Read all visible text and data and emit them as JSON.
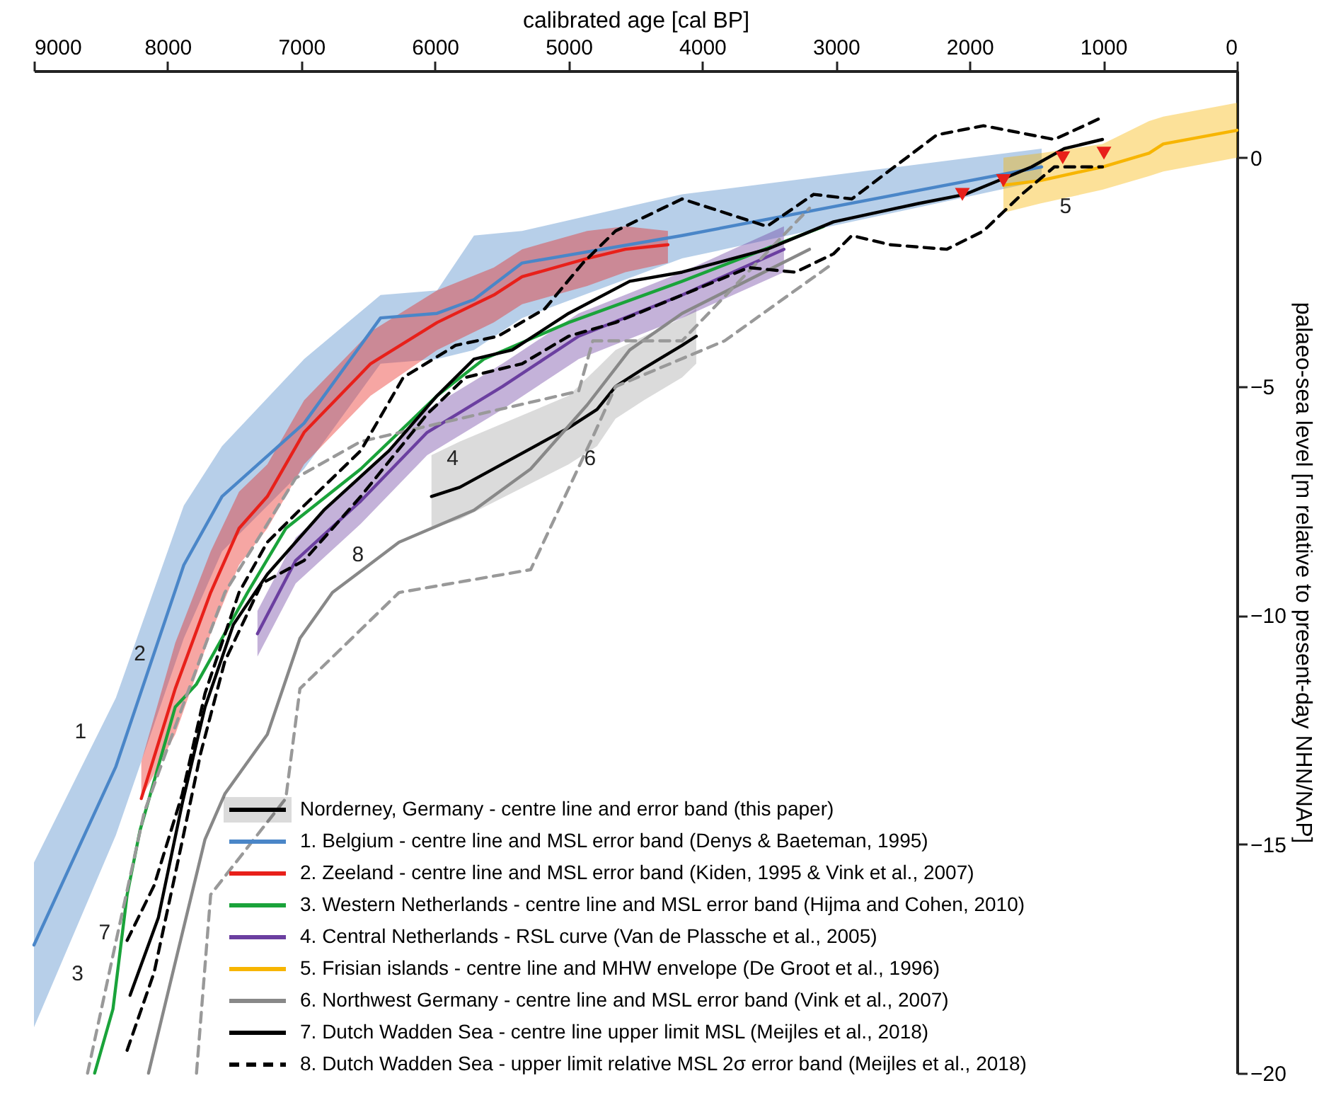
{
  "chart_data": {
    "type": "line",
    "xlabel": "calibrated age [cal BP]",
    "ylabel": "palaeo-sea level [m relative to present-day NHN/NAP]",
    "xlim": [
      9000,
      0
    ],
    "xticks": [
      9000,
      8000,
      7000,
      6000,
      5000,
      4000,
      3000,
      2000,
      1000,
      0
    ],
    "ylim": [
      -20,
      1.9
    ],
    "yticks": [
      -20,
      -15,
      -10,
      -5,
      0
    ],
    "grid": false,
    "legend": "bottom left",
    "series": [
      {
        "name": "Norderney, Germany - centre line and error band (this paper)",
        "color": "#000000",
        "x": [
          6026,
          5814,
          5000,
          4787,
          4649,
          4437,
          4151,
          4045
        ],
        "values": [
          -7.4,
          -7.2,
          -5.9,
          -5.5,
          -5.0,
          -4.6,
          -4.1,
          -3.9
        ],
        "lower": [
          -8.1,
          -7.9,
          -6.7,
          -6.3,
          -5.7,
          -5.3,
          -4.8,
          -4.5
        ],
        "upper": [
          -6.5,
          -6.2,
          -5.2,
          -4.6,
          -4.2,
          -3.9,
          -3.5,
          -3.3
        ]
      },
      {
        "name": "1. Belgium - centre line and MSL error band (Denys & Baeteman, 1995)",
        "color": "#4a86c8",
        "x": [
          9000,
          8387,
          7879,
          7593,
          6979,
          6407,
          5984,
          5708,
          5348,
          4151,
          1461
        ],
        "values": [
          -17.2,
          -13.3,
          -8.9,
          -7.4,
          -5.8,
          -3.5,
          -3.4,
          -3.1,
          -2.3,
          -1.7,
          -0.2
        ],
        "lower": [
          -19.0,
          -14.8,
          -10.5,
          -8.6,
          -6.8,
          -4.5,
          -4.4,
          -4.2,
          -3.5,
          -2.2,
          -0.5
        ],
        "upper": [
          -15.4,
          -11.8,
          -7.6,
          -6.3,
          -4.4,
          -3.0,
          -2.9,
          -1.7,
          -1.6,
          -0.8,
          0.2
        ]
      },
      {
        "name": "2. Zeeland - centre line and MSL error band (Kiden, 1995 & Vink et al., 2007)",
        "color": "#e8201a",
        "x": [
          8197,
          7943,
          7678,
          7466,
          7254,
          6979,
          6481,
          5984,
          5560,
          5348,
          4861,
          4575,
          4257
        ],
        "values": [
          -14.0,
          -11.6,
          -9.5,
          -8.1,
          -7.4,
          -6.0,
          -4.5,
          -3.6,
          -3.0,
          -2.6,
          -2.2,
          -2.0,
          -1.9
        ],
        "lower": [
          -14.0,
          -12.6,
          -10.4,
          -8.9,
          -8.1,
          -6.7,
          -5.2,
          -4.2,
          -3.6,
          -3.2,
          -2.8,
          -2.5,
          -2.3
        ],
        "upper": [
          -13.2,
          -10.6,
          -8.6,
          -7.3,
          -6.7,
          -5.3,
          -3.8,
          -2.9,
          -2.4,
          -2.0,
          -1.6,
          -1.5,
          -1.6
        ]
      },
      {
        "name": "3. Western Netherlands - centre line and MSL error band (Hijma and Cohen, 2010)",
        "color": "#1aa33a",
        "x": [
          8546,
          8409,
          8303,
          8207,
          7943,
          7784,
          7593,
          7402,
          7116,
          6555,
          5984,
          5634,
          5000,
          4151,
          3092
        ],
        "values": [
          -20.0,
          -18.6,
          -16.1,
          -14.7,
          -12.0,
          -11.5,
          -10.5,
          -9.5,
          -8.1,
          -6.8,
          -5.2,
          -4.4,
          -3.6,
          -2.7,
          -1.5
        ]
      },
      {
        "name": "4. Central Netherlands - RSL curve (Van de Plassche et al., 2005)",
        "color": "#6b3fa0",
        "x": [
          7328,
          7042,
          6555,
          6058,
          5496,
          4925,
          4151,
          3389
        ],
        "values": [
          -10.4,
          -8.8,
          -7.5,
          -6.0,
          -5.0,
          -3.9,
          -3.0,
          -2.0
        ],
        "lower": [
          -10.9,
          -9.3,
          -8.0,
          -6.5,
          -5.5,
          -4.4,
          -3.5,
          -2.5
        ],
        "upper": [
          -9.9,
          -8.3,
          -7.0,
          -5.5,
          -4.5,
          -3.4,
          -2.5,
          -1.5
        ]
      },
      {
        "name": "5. Frisian islands - centre line and MHW envelope (De Groot et al., 1996)",
        "color": "#f7b500",
        "x": [
          1747,
          1472,
          1006,
          657,
          551,
          0
        ],
        "values": [
          -0.6,
          -0.5,
          -0.2,
          0.1,
          0.3,
          0.6
        ],
        "lower": [
          -1.2,
          -1.0,
          -0.7,
          -0.4,
          -0.3,
          0.0
        ],
        "upper": [
          0.0,
          0.1,
          0.3,
          0.8,
          0.9,
          1.2
        ]
      },
      {
        "name": "6. Northwest Germany - centre line and MSL error band (Vink et al., 2007)",
        "color": "#888888",
        "x": [
          8143,
          7721,
          7572,
          7254,
          7010,
          6767,
          6269,
          5708,
          5284,
          4861,
          4543,
          4151,
          3198
        ],
        "values": [
          -20.0,
          -14.9,
          -13.9,
          -12.6,
          -10.5,
          -9.5,
          -8.4,
          -7.7,
          -6.8,
          -5.4,
          -4.2,
          -3.4,
          -2.0
        ]
      },
      {
        "color": "#999999",
        "line_style": "dashed",
        "x": [
          8599,
          8355,
          8175,
          7890,
          7572,
          7042,
          6555,
          4925,
          4819,
          4151,
          3198
        ],
        "values": [
          -20.0,
          -16.7,
          -14.3,
          -12.0,
          -9.5,
          -7.0,
          -6.2,
          -5.1,
          -4.0,
          -4.0,
          -1.1
        ]
      },
      {
        "color": "#999999",
        "line_style": "dashed",
        "x": [
          7784,
          7678,
          7116,
          7010,
          6269,
          5284,
          4819,
          4649,
          3833,
          3018
        ],
        "values": [
          -20.0,
          -16.1,
          -14.0,
          -11.6,
          -9.5,
          -9.0,
          -6.1,
          -5.0,
          -4.0,
          -2.3
        ]
      },
      {
        "name": "7. Dutch Wadden Sea - centre line upper limit MSL (Meijles et al., 2018)",
        "color": "#000000",
        "x": [
          8281,
          8069,
          7890,
          7720,
          7508,
          7254,
          6831,
          6343,
          5984,
          5708,
          5422,
          5000,
          4543,
          4151,
          3516,
          3018,
          2383,
          2033,
          1536,
          1292,
          1006
        ],
        "values": [
          -18.3,
          -16.6,
          -14.1,
          -12.0,
          -10.2,
          -9.1,
          -7.7,
          -6.4,
          -5.2,
          -4.4,
          -4.2,
          -3.4,
          -2.7,
          -2.5,
          -2.0,
          -1.4,
          -1.0,
          -0.8,
          -0.2,
          0.2,
          0.4
        ]
      },
      {
        "name": "8. Dutch Wadden Sea - upper limit relative MSL 2σ error band (Meijles et al., 2018)",
        "color": "#000000",
        "line_style": "dashed",
        "x": [
          8303,
          8101,
          7890,
          7720,
          7466,
          7254,
          6979,
          6555,
          6237,
          5846,
          5528,
          5178,
          4893,
          4649,
          4151,
          3516,
          3167,
          2881,
          2245,
          1896,
          1366,
          995
        ],
        "values": [
          -17.1,
          -15.9,
          -13.9,
          -11.7,
          -9.5,
          -8.4,
          -7.6,
          -6.4,
          -4.8,
          -4.1,
          -3.9,
          -3.3,
          -2.3,
          -1.6,
          -0.9,
          -1.5,
          -0.8,
          -0.9,
          0.5,
          0.7,
          0.4,
          0.9
        ]
      },
      {
        "color": "#000000",
        "line_style": "dashed",
        "x": [
          8303,
          8101,
          7932,
          7752,
          7572,
          7296,
          6979,
          6555,
          6058,
          5772,
          5348,
          5000,
          4649,
          3653,
          3304,
          3018,
          2881,
          2595,
          2171,
          1896,
          1610,
          1366,
          1006
        ],
        "values": [
          -19.5,
          -17.8,
          -15.5,
          -13.0,
          -11.0,
          -9.3,
          -8.8,
          -7.4,
          -5.6,
          -4.8,
          -4.5,
          -3.9,
          -3.6,
          -2.4,
          -2.5,
          -2.1,
          -1.7,
          -1.9,
          -2.0,
          -1.6,
          -0.8,
          -0.2,
          -0.2
        ]
      },
      {
        "type": "scatter",
        "marker": "triangle",
        "color": "#e8201a",
        "x": [
          2054,
          1747,
          1303,
          995
        ],
        "values": [
          -0.8,
          -0.5,
          0.0,
          0.1
        ]
      }
    ],
    "annotations": [
      {
        "text": "1",
        "x": 8387,
        "y": -13.3
      },
      {
        "text": "2",
        "x": 7943,
        "y": -11.6
      },
      {
        "text": "3",
        "x": 8409,
        "y": -18.6
      },
      {
        "text": "4",
        "x": 6058,
        "y": -6.0
      },
      {
        "text": "5",
        "x": 1472,
        "y": -0.5
      },
      {
        "text": "6",
        "x": 5030,
        "y": -6.0
      },
      {
        "text": "7",
        "x": 8207,
        "y": -17.7
      },
      {
        "text": "8",
        "x": 6767,
        "y": -8.1
      }
    ]
  }
}
